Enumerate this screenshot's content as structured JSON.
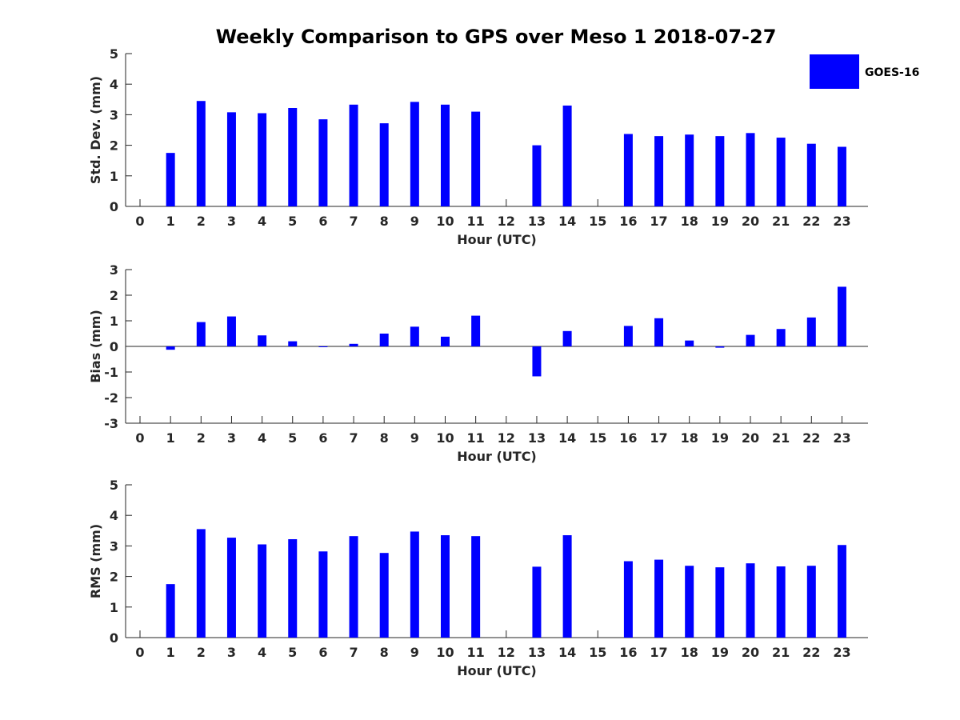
{
  "chart_data": {
    "title": "Weekly Comparison to GPS over Meso 1 2018-07-27",
    "legend": {
      "label": "GOES-16",
      "color": "#0000ff",
      "placement": "top-right"
    },
    "bar_color": "#0000ff",
    "categories": [
      0,
      1,
      2,
      3,
      4,
      5,
      6,
      7,
      8,
      9,
      10,
      11,
      12,
      13,
      14,
      15,
      16,
      17,
      18,
      19,
      20,
      21,
      22,
      23
    ],
    "panels": [
      {
        "type": "bar",
        "xlabel": "Hour (UTC)",
        "ylabel": "Std. Dev. (mm)",
        "ylim": [
          0,
          5
        ],
        "yticks": [
          0,
          1,
          2,
          3,
          4,
          5
        ],
        "values": [
          null,
          1.75,
          3.45,
          3.08,
          3.05,
          3.22,
          2.85,
          3.33,
          2.72,
          3.42,
          3.33,
          3.1,
          null,
          2.0,
          3.3,
          null,
          2.37,
          2.3,
          2.35,
          2.3,
          2.4,
          2.25,
          2.05,
          1.95
        ]
      },
      {
        "type": "bar",
        "xlabel": "Hour (UTC)",
        "ylabel": "Bias (mm)",
        "ylim": [
          -3,
          3
        ],
        "yticks": [
          -3,
          -2,
          -1,
          0,
          1,
          2,
          3
        ],
        "values": [
          null,
          -0.13,
          0.95,
          1.17,
          0.43,
          0.2,
          -0.02,
          0.1,
          0.5,
          0.77,
          0.38,
          1.2,
          null,
          -1.17,
          0.6,
          null,
          0.8,
          1.1,
          0.23,
          -0.05,
          0.45,
          0.68,
          1.13,
          2.33
        ]
      },
      {
        "type": "bar",
        "xlabel": "Hour (UTC)",
        "ylabel": "RMS (mm)",
        "ylim": [
          0,
          5
        ],
        "yticks": [
          0,
          1,
          2,
          3,
          4,
          5
        ],
        "values": [
          null,
          1.75,
          3.55,
          3.27,
          3.05,
          3.22,
          2.82,
          3.32,
          2.77,
          3.47,
          3.35,
          3.32,
          null,
          2.32,
          3.35,
          null,
          2.5,
          2.55,
          2.35,
          2.3,
          2.43,
          2.33,
          2.35,
          3.03
        ]
      }
    ]
  }
}
